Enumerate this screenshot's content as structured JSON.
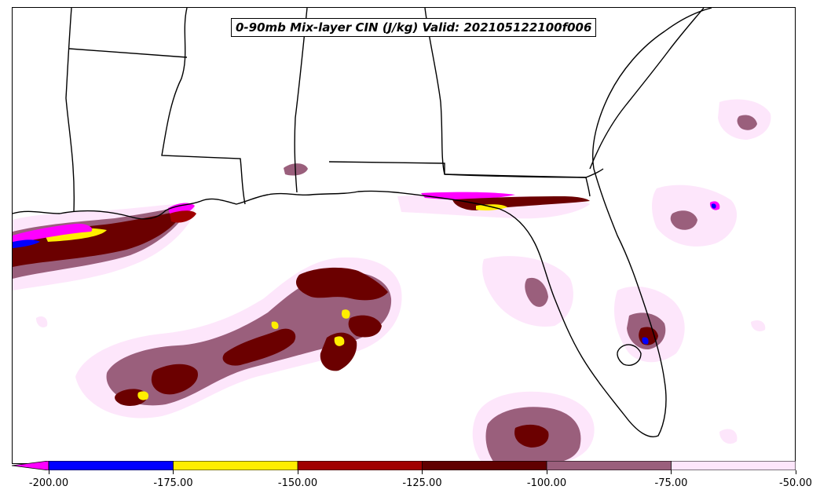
{
  "title": "0-90mb Mix-layer CIN (J/kg) Valid: 202105122100f006",
  "colorbar": {
    "ticks": [
      "-200.00",
      "-175.00",
      "-150.00",
      "-125.00",
      "-100.00",
      "-75.00",
      "-50.00"
    ],
    "bins": [
      {
        "from": -200,
        "to": -175,
        "color": "#0000ff"
      },
      {
        "from": -175,
        "to": -150,
        "color": "#ffee00"
      },
      {
        "from": -150,
        "to": -125,
        "color": "#a00000"
      },
      {
        "from": -125,
        "to": -100,
        "color": "#600000"
      },
      {
        "from": -100,
        "to": -75,
        "color": "#9a5f7c"
      },
      {
        "from": -75,
        "to": -50,
        "color": "#fde6fb"
      }
    ],
    "under_color": "#ff00ff"
  },
  "colors": {
    "very_light_pink": "#fde6fb",
    "mauve": "#9a5f7c",
    "dark_red": "#6b0000",
    "red": "#a00000",
    "yellow": "#ffee00",
    "blue": "#0000ff",
    "magenta": "#ff00ff",
    "outline": "#000000"
  }
}
